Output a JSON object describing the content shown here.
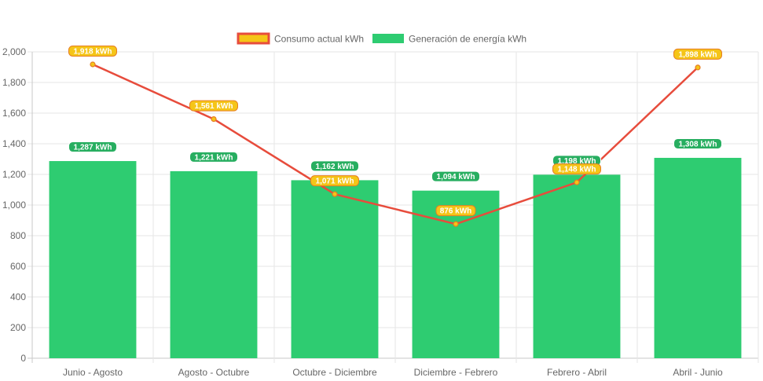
{
  "chart_data": {
    "type": "bar",
    "title": "",
    "xlabel": "",
    "ylabel": "",
    "categories": [
      "Junio - Agosto",
      "Agosto - Octubre",
      "Octubre - Diciembre",
      "Diciembre - Febrero",
      "Febrero - Abril",
      "Abril - Junio"
    ],
    "ylim": [
      0,
      2000
    ],
    "yticks": [
      0,
      200,
      400,
      600,
      800,
      1000,
      1200,
      1400,
      1600,
      1800,
      2000
    ],
    "ytick_labels": [
      "0",
      "200",
      "400",
      "600",
      "800",
      "1,000",
      "1,200",
      "1,400",
      "1,600",
      "1,800",
      "2,000"
    ],
    "grid": true,
    "legend_position": "top-center",
    "series": [
      {
        "name": "Consumo actual kWh",
        "type": "line",
        "color": "#e74c3c",
        "fill_color": "#f5c518",
        "values": [
          1918,
          1561,
          1071,
          876,
          1148,
          1898
        ],
        "data_labels": [
          "1,918 kWh",
          "1,561 kWh",
          "1,071 kWh",
          "876 kWh",
          "1,148 kWh",
          "1,898 kWh"
        ]
      },
      {
        "name": "Generación de energía kWh",
        "type": "bar",
        "color": "#2ecc71",
        "values": [
          1287,
          1221,
          1162,
          1094,
          1198,
          1308
        ],
        "data_labels": [
          "1,287 kWh",
          "1,221 kWh",
          "1,162 kWh",
          "1,094 kWh",
          "1,198 kWh",
          "1,308 kWh"
        ]
      }
    ]
  }
}
